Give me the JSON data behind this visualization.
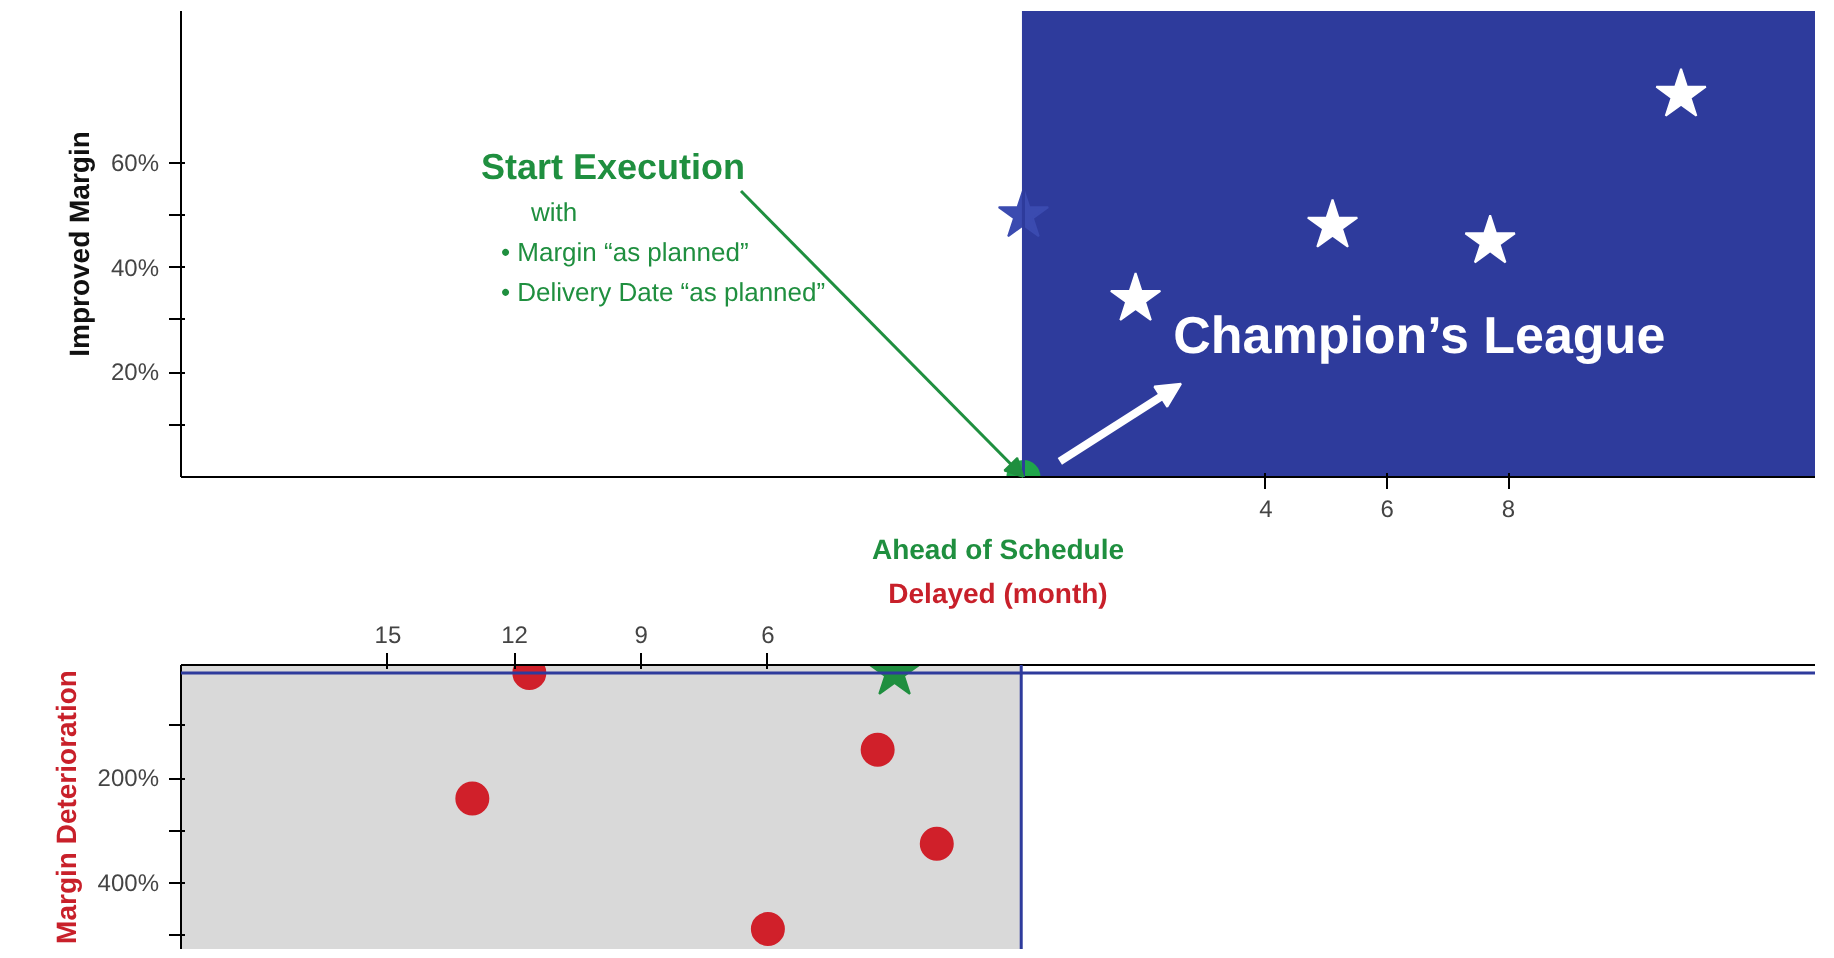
{
  "chart_data": [
    {
      "type": "scatter",
      "xlabel": "Ahead of Schedule",
      "ylabel": "Improved Margin",
      "xlim": [
        -13.9,
        13.06
      ],
      "ylim": [
        0,
        89
      ],
      "xticks": [
        4,
        6,
        8
      ],
      "yticks": [
        {
          "value": 10,
          "label": null
        },
        {
          "value": 20,
          "label": "20%"
        },
        {
          "value": 30,
          "label": null
        },
        {
          "value": 40,
          "label": "40%"
        },
        {
          "value": 50,
          "label": null
        },
        {
          "value": 60,
          "label": "60%"
        }
      ],
      "grid": false,
      "ref_lines": [
        {
          "axis": "x",
          "value": 0
        }
      ],
      "bands": [
        {
          "axis": "x",
          "from": 0,
          "to": 13.06,
          "label": "Champion’s League",
          "color": "#2e3b9c"
        }
      ],
      "annotations": [
        {
          "text": "Start Execution",
          "x": 0,
          "y": 0
        },
        "with",
        "• Margin “as planned”",
        "• Delivery Date “as planned”"
      ],
      "series": [
        {
          "color": "#ffffff",
          "marker": "star",
          "x": [
            1.85,
            5.1,
            7.7,
            10.85
          ],
          "values": [
            34,
            48,
            45,
            73
          ]
        },
        {
          "color": "#3b4bb0",
          "marker": "star",
          "x": [
            0
          ],
          "values": [
            50
          ]
        },
        {
          "color": "#1fa64a",
          "marker": "circle",
          "x": [
            0
          ],
          "values": [
            0
          ]
        }
      ]
    },
    {
      "type": "scatter",
      "xlabel": "Delayed (month)",
      "ylabel": "Margin Deterioration",
      "xlim": [
        -19.9,
        18.8
      ],
      "ylim": [
        -525,
        15
      ],
      "xticks": [
        {
          "value": -15,
          "label": "15"
        },
        {
          "value": -12,
          "label": "12"
        },
        {
          "value": -9,
          "label": "9"
        },
        {
          "value": -6,
          "label": "6"
        }
      ],
      "yticks": [
        {
          "value": -100,
          "label": null
        },
        {
          "value": -200,
          "label": "200%"
        },
        {
          "value": -300,
          "label": null
        },
        {
          "value": -400,
          "label": "400%"
        },
        {
          "value": -500,
          "label": null
        }
      ],
      "grid": false,
      "ref_lines": [
        {
          "axis": "x",
          "value": 0
        },
        {
          "axis": "y",
          "value": 0
        }
      ],
      "bands": [
        {
          "axis": "x",
          "from": -19.9,
          "to": 0,
          "color": "#d9d9d9"
        }
      ],
      "series": [
        {
          "color": "#d0202a",
          "marker": "circle",
          "x": [
            -11.65,
            -3.4,
            -13.0,
            -2.0,
            -6.0
          ],
          "values": [
            0,
            -146,
            -239,
            -325,
            -487
          ]
        },
        {
          "color": "#1f8f3f",
          "marker": "star",
          "x": [
            -3.0
          ],
          "values": [
            0
          ]
        }
      ]
    }
  ]
}
